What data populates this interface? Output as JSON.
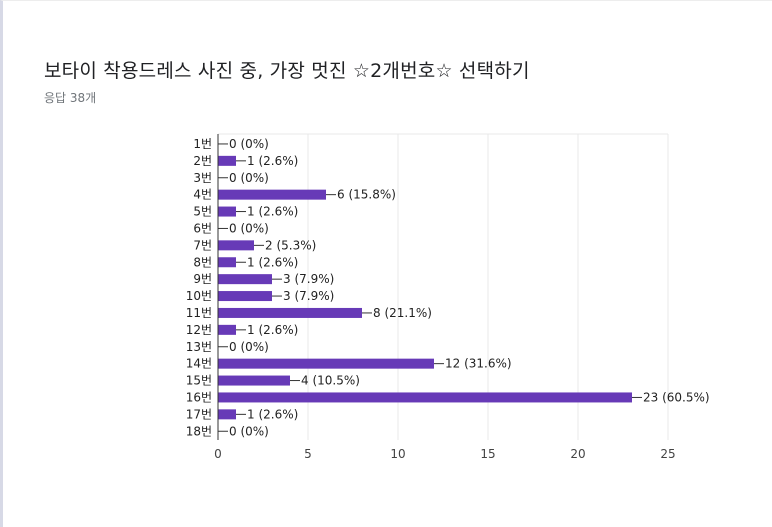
{
  "header": {
    "title": "보타이 착용드레스 사진 중, 가장 멋진 ☆2개번호☆ 선택하기",
    "response_count": "응답 38개"
  },
  "colors": {
    "bar": "#673ab7",
    "grid": "#e8e8e8",
    "axis": "#333333"
  },
  "chart_data": {
    "type": "bar",
    "orientation": "horizontal",
    "categories": [
      "1번",
      "2번",
      "3번",
      "4번",
      "5번",
      "6번",
      "7번",
      "8번",
      "9번",
      "10번",
      "11번",
      "12번",
      "13번",
      "14번",
      "15번",
      "16번",
      "17번",
      "18번"
    ],
    "values": [
      0,
      1,
      0,
      6,
      1,
      0,
      2,
      1,
      3,
      3,
      8,
      1,
      0,
      12,
      4,
      23,
      1,
      0
    ],
    "data_labels": [
      "0 (0%)",
      "1 (2.6%)",
      "0 (0%)",
      "6 (15.8%)",
      "1 (2.6%)",
      "0 (0%)",
      "2 (5.3%)",
      "1 (2.6%)",
      "3 (7.9%)",
      "3 (7.9%)",
      "8 (21.1%)",
      "1 (2.6%)",
      "0 (0%)",
      "12 (31.6%)",
      "4 (10.5%)",
      "23 (60.5%)",
      "1 (2.6%)",
      "0 (0%)"
    ],
    "xlim": [
      0,
      25
    ],
    "xticks": [
      0,
      5,
      10,
      15,
      20,
      25
    ],
    "grid": true,
    "legend": "none"
  }
}
